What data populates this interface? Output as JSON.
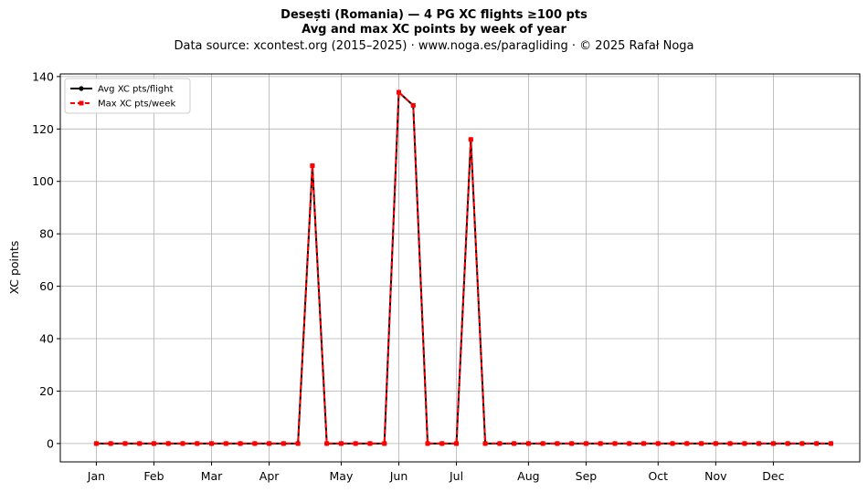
{
  "titles": {
    "line1": "Desești (Romania)  —  4 PG XC flights ≥100 pts",
    "line2": "Avg and max XC points by week of year",
    "line3": "Data source: xcontest.org (2015–2025)  ·  www.noga.es/paragliding  ·  © 2025 Rafał Noga"
  },
  "chart_data": {
    "type": "line",
    "xlabel": "",
    "ylabel": "XC points",
    "x_unit": "week of year",
    "xlim": [
      -1.5,
      54
    ],
    "ylim": [
      -7,
      141
    ],
    "yticks": [
      0,
      20,
      40,
      60,
      80,
      100,
      120,
      140
    ],
    "month_ticks": [
      {
        "label": "Jan",
        "week": 1
      },
      {
        "label": "Feb",
        "week": 5
      },
      {
        "label": "Mar",
        "week": 9
      },
      {
        "label": "Apr",
        "week": 13
      },
      {
        "label": "May",
        "week": 18
      },
      {
        "label": "Jun",
        "week": 22
      },
      {
        "label": "Jul",
        "week": 26
      },
      {
        "label": "Aug",
        "week": 31
      },
      {
        "label": "Sep",
        "week": 35
      },
      {
        "label": "Oct",
        "week": 40
      },
      {
        "label": "Nov",
        "week": 44
      },
      {
        "label": "Dec",
        "week": 48
      }
    ],
    "grid": true,
    "legend_position": "top-left",
    "x": [
      1,
      2,
      3,
      4,
      5,
      6,
      7,
      8,
      9,
      10,
      11,
      12,
      13,
      14,
      15,
      16,
      17,
      18,
      19,
      20,
      21,
      22,
      23,
      24,
      25,
      26,
      27,
      28,
      29,
      30,
      31,
      32,
      33,
      34,
      35,
      36,
      37,
      38,
      39,
      40,
      41,
      42,
      43,
      44,
      45,
      46,
      47,
      48,
      49,
      50,
      51,
      52
    ],
    "series": [
      {
        "name": "Avg XC pts/flight",
        "color": "#000000",
        "style": "solid",
        "marker": "circle",
        "values": [
          0,
          0,
          0,
          0,
          0,
          0,
          0,
          0,
          0,
          0,
          0,
          0,
          0,
          0,
          0,
          106,
          0,
          0,
          0,
          0,
          0,
          134,
          129,
          0,
          0,
          0,
          116,
          0,
          0,
          0,
          0,
          0,
          0,
          0,
          0,
          0,
          0,
          0,
          0,
          0,
          0,
          0,
          0,
          0,
          0,
          0,
          0,
          0,
          0,
          0,
          0,
          0
        ]
      },
      {
        "name": "Max XC pts/week",
        "color": "#ff0000",
        "style": "dashed",
        "marker": "square",
        "values": [
          0,
          0,
          0,
          0,
          0,
          0,
          0,
          0,
          0,
          0,
          0,
          0,
          0,
          0,
          0,
          106,
          0,
          0,
          0,
          0,
          0,
          134,
          129,
          0,
          0,
          0,
          116,
          0,
          0,
          0,
          0,
          0,
          0,
          0,
          0,
          0,
          0,
          0,
          0,
          0,
          0,
          0,
          0,
          0,
          0,
          0,
          0,
          0,
          0,
          0,
          0,
          0
        ]
      }
    ]
  }
}
